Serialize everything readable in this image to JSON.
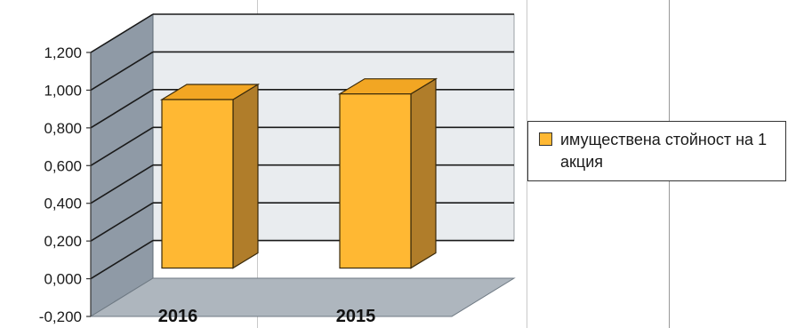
{
  "chart_data": {
    "type": "bar",
    "categories": [
      "2016",
      "2015"
    ],
    "series": [
      {
        "name": "имуществена стойност на 1 акция",
        "values": [
          0.95,
          0.98
        ],
        "color": "#ffb833"
      }
    ],
    "ylim": [
      -0.2,
      1.2
    ],
    "yticks": [
      "-0,200",
      "0,000",
      "0,200",
      "0,400",
      "0,600",
      "0,800",
      "1,000",
      "1,200"
    ],
    "grid": true,
    "legend": "right",
    "three_d": true
  }
}
